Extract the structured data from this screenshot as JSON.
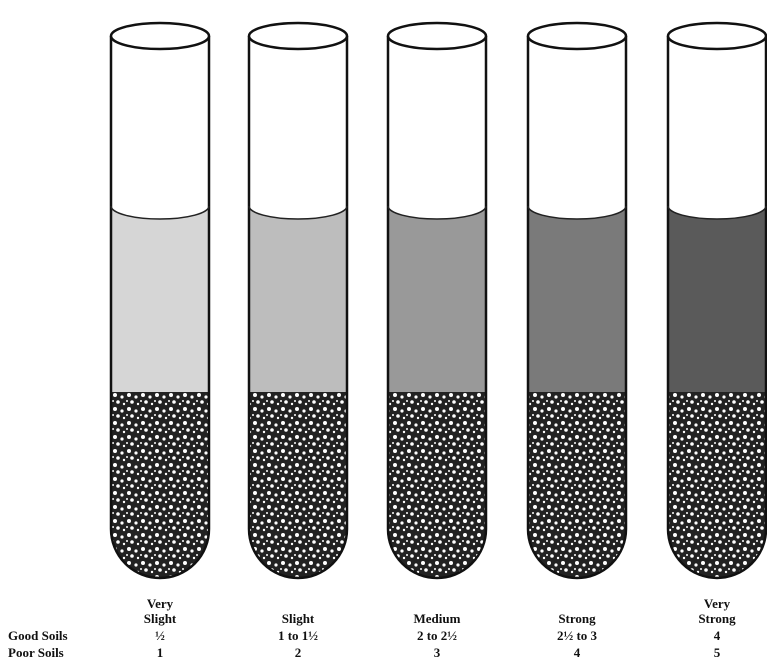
{
  "row_labels": {
    "good": "Good Soils",
    "poor": "Poor Soils"
  },
  "tubes": [
    {
      "label": [
        "Very",
        "Slight"
      ],
      "good": "½",
      "poor": "1"
    },
    {
      "label": [
        "Slight"
      ],
      "good": "1 to 1½",
      "poor": "2"
    },
    {
      "label": [
        "Medium"
      ],
      "good": "2 to 2½",
      "poor": "3"
    },
    {
      "label": [
        "Strong"
      ],
      "good": "2½ to 3",
      "poor": "4"
    },
    {
      "label": [
        "Very",
        "Strong"
      ],
      "good": "4",
      "poor": "5"
    }
  ]
}
